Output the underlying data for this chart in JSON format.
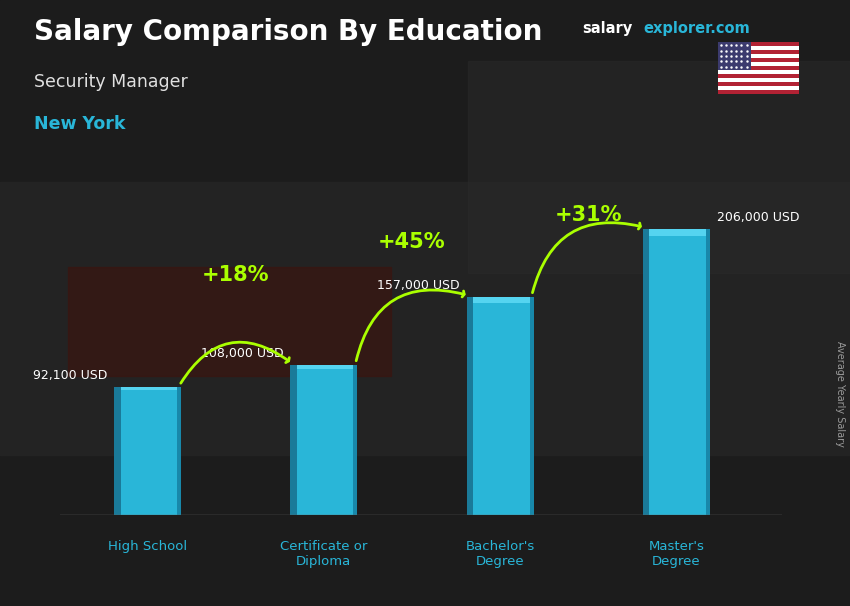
{
  "title": "Salary Comparison By Education",
  "subtitle": "Security Manager",
  "location": "New York",
  "categories": [
    "High School",
    "Certificate or\nDiploma",
    "Bachelor's\nDegree",
    "Master's\nDegree"
  ],
  "values": [
    92100,
    108000,
    157000,
    206000
  ],
  "value_labels": [
    "92,100 USD",
    "108,000 USD",
    "157,000 USD",
    "206,000 USD"
  ],
  "pct_changes": [
    "+18%",
    "+45%",
    "+31%"
  ],
  "bar_color_main": "#29b6d8",
  "bar_color_dark_left": "#1a7a99",
  "bar_color_light_top": "#55d4f0",
  "bg_dark": "#1a1a1a",
  "bg_mid": "#2e2e2e",
  "title_color": "#ffffff",
  "subtitle_color": "#e0e0e0",
  "location_color": "#29b6d8",
  "value_label_color": "#ffffff",
  "pct_color": "#aaff00",
  "axis_label_color": "#29b6d8",
  "watermark_white": "salary",
  "watermark_cyan": "explorer.com",
  "side_label": "Average Yearly Salary",
  "ylim_max": 240000,
  "bar_positions": [
    0,
    1,
    2,
    3
  ],
  "bar_width": 0.38
}
